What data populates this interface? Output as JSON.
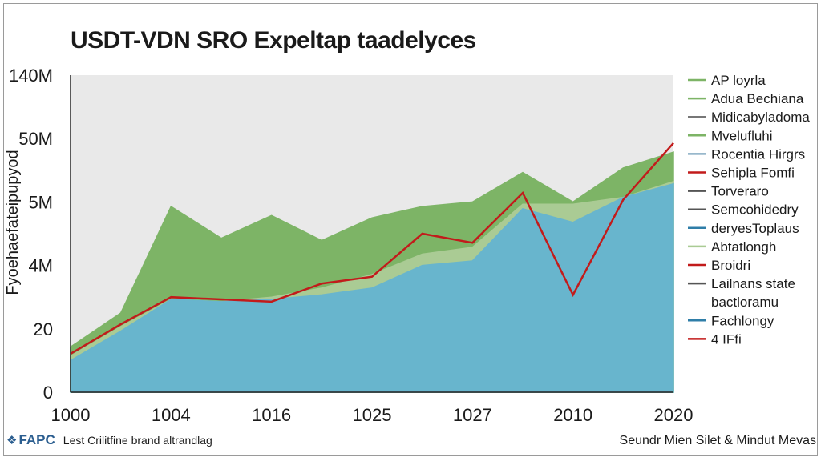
{
  "chart_data": {
    "type": "area",
    "title": "USDT-VDN SRO Expeltap taadelyces",
    "ylabel": "Fyoehaefateipupyod",
    "xlabel": "",
    "x_tick_labels": [
      "1000",
      "1004",
      "1016",
      "1025",
      "1027",
      "2010",
      "2020"
    ],
    "y_tick_labels": [
      "0",
      "20",
      "4M",
      "5M",
      "50M",
      "140M"
    ],
    "ylim": [
      0,
      140
    ],
    "n_points": 13,
    "series": [
      {
        "name": "Fachlongy",
        "kind": "area",
        "color": "#68b5cd",
        "values": [
          14,
          27,
          41,
          40,
          41,
          43,
          46,
          56,
          58,
          81,
          75,
          86,
          92
        ]
      },
      {
        "name": "Adua Bechiana",
        "kind": "area",
        "color": "#aacb94",
        "values": [
          16,
          29,
          41,
          40,
          42,
          46,
          52,
          61,
          64,
          83,
          83,
          86,
          93
        ]
      },
      {
        "name": "AP loyrla",
        "kind": "area",
        "color": "#7db466",
        "values": [
          20,
          35,
          82,
          68,
          78,
          67,
          77,
          82,
          84,
          97,
          84,
          99,
          106
        ]
      },
      {
        "name": "4 IFfi",
        "kind": "line",
        "color": "#c21b1b",
        "values": [
          17,
          30,
          42,
          41,
          40,
          48,
          51,
          70,
          66,
          88,
          43,
          85,
          110
        ]
      }
    ],
    "legend": {
      "position": "right",
      "entries": [
        {
          "label": "AP loyrla",
          "swatch": "line",
          "color": "#7db466"
        },
        {
          "label": "Adua Bechiana",
          "swatch": "line",
          "color": "#7db466"
        },
        {
          "label": "Midicabyladoma",
          "swatch": "line",
          "color": "#777777"
        },
        {
          "label": "Mvelufluhi",
          "swatch": "line",
          "color": "#7db466"
        },
        {
          "label": "Rocentia Hirgrs",
          "swatch": "line",
          "color": "#8aaec4"
        },
        {
          "label": "Sehipla Fomfi",
          "swatch": "line",
          "color": "#c21b1b"
        },
        {
          "label": "Torverarо",
          "swatch": "line",
          "color": "#555555"
        },
        {
          "label": "Semcohidedry",
          "swatch": "line",
          "color": "#555555"
        },
        {
          "label": "deryesToplaus",
          "swatch": "line",
          "color": "#2f7ea8"
        },
        {
          "label": "Abtatlongh",
          "swatch": "line",
          "color": "#aacb94"
        },
        {
          "label": "Broidri",
          "swatch": "line",
          "color": "#c21b1b"
        },
        {
          "label": "Lailnans state",
          "swatch": "line",
          "color": "#555555"
        },
        {
          "label": "bactloramu",
          "swatch": "none",
          "color": "#555555"
        },
        {
          "label": "Fachlongy",
          "swatch": "line",
          "color": "#2f7ea8"
        },
        {
          "label": "4 IFfi",
          "swatch": "line",
          "color": "#c21b1b"
        }
      ]
    }
  },
  "footer": {
    "brand": "FAPC",
    "note": "Lest Crilitfine brand altrandlag",
    "source": "Seundr Mien Silet & Mindut Mevas"
  }
}
